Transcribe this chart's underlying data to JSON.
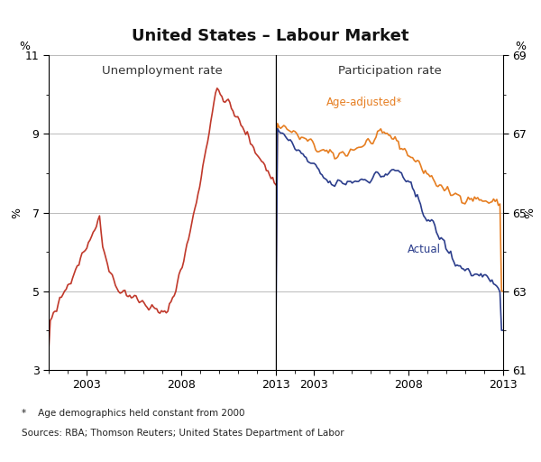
{
  "title": "United States – Labour Market",
  "left_panel_title": "Unemployment rate",
  "right_panel_title": "Participation rate",
  "left_ylabel": "%",
  "right_ylabel": "%",
  "left_ylim": [
    3,
    11
  ],
  "right_ylim": [
    61,
    69
  ],
  "left_yticks": [
    3,
    5,
    7,
    9,
    11
  ],
  "right_yticks": [
    61,
    63,
    65,
    67,
    69
  ],
  "footnote1": "*    Age demographics held constant from 2000",
  "footnote2": "Sources: RBA; Thomson Reuters; United States Department of Labor",
  "age_adjusted_label": "Age-adjusted*",
  "actual_label": "Actual",
  "line_color_unemployment": "#c0392b",
  "line_color_age_adjusted": "#e67e22",
  "line_color_actual": "#2c3e8c",
  "background_color": "#ffffff",
  "grid_color": "#b0b0b0"
}
